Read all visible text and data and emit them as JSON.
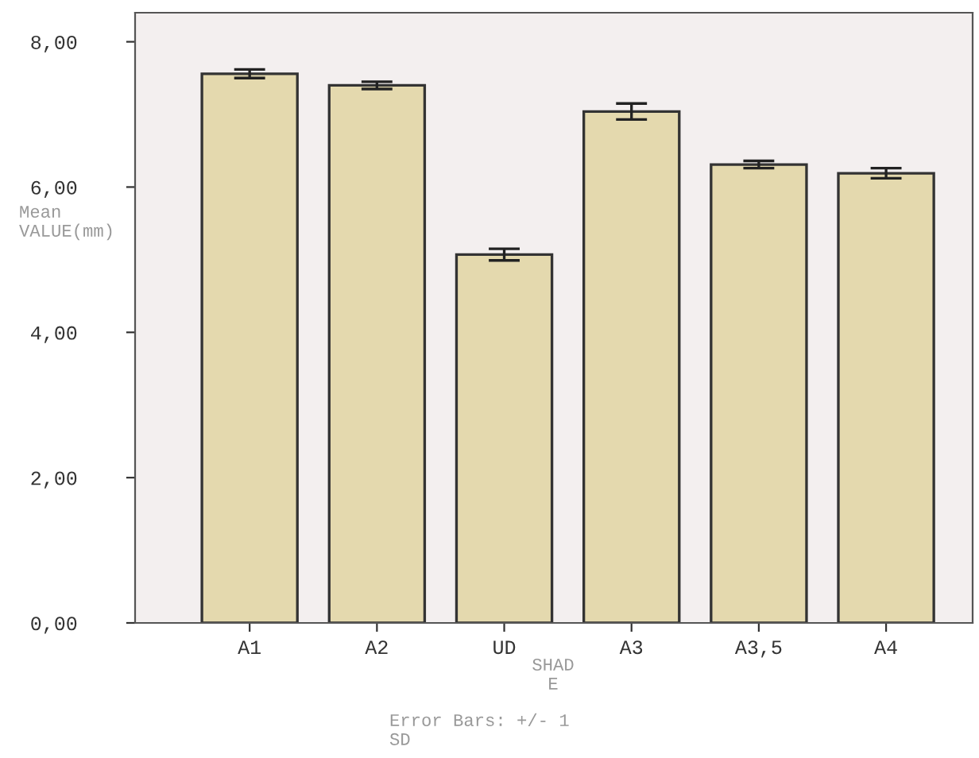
{
  "chart_data": {
    "type": "bar",
    "categories": [
      "A1",
      "A2",
      "UD",
      "A3",
      "A3,5",
      "A4"
    ],
    "values": [
      7.56,
      7.4,
      5.07,
      7.04,
      6.31,
      6.19
    ],
    "errors": [
      0.06,
      0.05,
      0.08,
      0.11,
      0.05,
      0.07
    ],
    "color": "#e4d9ae",
    "ylim": [
      0,
      8.4
    ],
    "yticks": [
      {
        "value": 0,
        "label": "0,00"
      },
      {
        "value": 2,
        "label": "2,00"
      },
      {
        "value": 4,
        "label": "4,00"
      },
      {
        "value": 6,
        "label": "6,00"
      },
      {
        "value": 8,
        "label": "8,00"
      }
    ],
    "ylabel": "Mean\nVALUE(mm)",
    "xlabel": "SHAD\nE",
    "annotations": [
      "Error Bars: +/- 1\nSD"
    ],
    "grid": false
  }
}
